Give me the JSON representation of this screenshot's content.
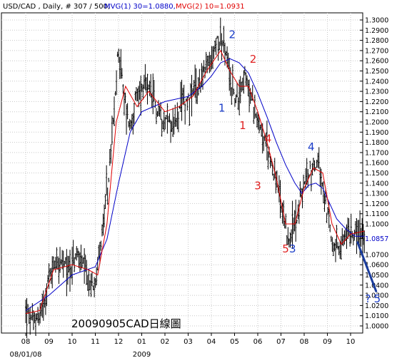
{
  "header": {
    "symbol": "USD/CAD , Daily, # 307 / 500,",
    "mvg1": "MVG(1) 30=1.0880,",
    "mvg2": "MVG(2) 10=1.0931"
  },
  "watermark": "20090905CAD日線圖",
  "colors": {
    "mvg1": "#0000c8",
    "mvg2": "#e00000",
    "bars": "#000000",
    "wave_blue": "#1a3cc8",
    "wave_red": "#e02020",
    "arrow": "#1a3c9c",
    "grid": "#c8c8c8"
  },
  "chart_data": {
    "type": "line",
    "title": "USD/CAD , Daily, # 307 / 500,",
    "ylim": [
      0.993,
      1.307
    ],
    "y_ticks": [
      "1.3000",
      "1.2900",
      "1.2800",
      "1.2700",
      "1.2600",
      "1.2500",
      "1.2400",
      "1.2300",
      "1.2200",
      "1.2100",
      "1.2000",
      "1.1900",
      "1.1800",
      "1.1700",
      "1.1600",
      "1.1500",
      "1.1400",
      "1.1300",
      "1.1200",
      "1.1100",
      "1.1000",
      "1.0857",
      "1.0700",
      "1.0600",
      "1.0500",
      "1.0400",
      "1.0300",
      "1.0200",
      "1.0100",
      "1.0000"
    ],
    "current_price": "1.0857",
    "x_ticks": [
      "08",
      "09",
      "10",
      "11",
      "12",
      "01",
      "02",
      "03",
      "04",
      "05",
      "06",
      "07",
      "08",
      "09",
      "10"
    ],
    "x_sublabels": [
      {
        "label": "08/01/08",
        "at": "08"
      },
      {
        "label": "2009",
        "at": "01"
      }
    ],
    "price_series": [
      {
        "t": 0,
        "v": 1.015
      },
      {
        "t": 0.3,
        "v": 1.003
      },
      {
        "t": 0.6,
        "v": 1.012
      },
      {
        "t": 1.0,
        "v": 1.045
      },
      {
        "t": 1.3,
        "v": 1.065
      },
      {
        "t": 1.7,
        "v": 1.058
      },
      {
        "t": 2.0,
        "v": 1.06
      },
      {
        "t": 2.3,
        "v": 1.07
      },
      {
        "t": 2.6,
        "v": 1.048
      },
      {
        "t": 2.8,
        "v": 1.035
      },
      {
        "t": 3.0,
        "v": 1.05
      },
      {
        "t": 3.3,
        "v": 1.09
      },
      {
        "t": 3.6,
        "v": 1.15
      },
      {
        "t": 3.85,
        "v": 1.22
      },
      {
        "t": 4.0,
        "v": 1.275
      },
      {
        "t": 4.2,
        "v": 1.23
      },
      {
        "t": 4.5,
        "v": 1.195
      },
      {
        "t": 4.8,
        "v": 1.225
      },
      {
        "t": 5.1,
        "v": 1.235
      },
      {
        "t": 5.4,
        "v": 1.225
      },
      {
        "t": 5.7,
        "v": 1.21
      },
      {
        "t": 6.0,
        "v": 1.205
      },
      {
        "t": 6.4,
        "v": 1.195
      },
      {
        "t": 6.8,
        "v": 1.22
      },
      {
        "t": 7.2,
        "v": 1.225
      },
      {
        "t": 7.6,
        "v": 1.245
      },
      {
        "t": 8.0,
        "v": 1.26
      },
      {
        "t": 8.3,
        "v": 1.285
      },
      {
        "t": 8.55,
        "v": 1.275
      },
      {
        "t": 8.8,
        "v": 1.24
      },
      {
        "t": 9.1,
        "v": 1.22
      },
      {
        "t": 9.4,
        "v": 1.245
      },
      {
        "t": 9.7,
        "v": 1.225
      },
      {
        "t": 10.0,
        "v": 1.205
      },
      {
        "t": 10.3,
        "v": 1.18
      },
      {
        "t": 10.6,
        "v": 1.16
      },
      {
        "t": 10.9,
        "v": 1.13
      },
      {
        "t": 11.2,
        "v": 1.09
      },
      {
        "t": 11.4,
        "v": 1.085
      },
      {
        "t": 11.7,
        "v": 1.11
      },
      {
        "t": 12.0,
        "v": 1.14
      },
      {
        "t": 12.3,
        "v": 1.155
      },
      {
        "t": 12.6,
        "v": 1.16
      },
      {
        "t": 12.9,
        "v": 1.12
      },
      {
        "t": 13.2,
        "v": 1.085
      },
      {
        "t": 13.5,
        "v": 1.072
      },
      {
        "t": 13.8,
        "v": 1.09
      },
      {
        "t": 14.1,
        "v": 1.095
      },
      {
        "t": 14.4,
        "v": 1.088
      },
      {
        "t": 14.6,
        "v": 1.0857
      }
    ],
    "series": [
      {
        "name": "MVG(1) 30",
        "color": "#0000c8",
        "values": [
          {
            "t": 0,
            "v": 1.015
          },
          {
            "t": 1.0,
            "v": 1.03
          },
          {
            "t": 2.0,
            "v": 1.05
          },
          {
            "t": 3.0,
            "v": 1.058
          },
          {
            "t": 3.5,
            "v": 1.085
          },
          {
            "t": 4.0,
            "v": 1.14
          },
          {
            "t": 4.5,
            "v": 1.19
          },
          {
            "t": 5.0,
            "v": 1.21
          },
          {
            "t": 6.0,
            "v": 1.22
          },
          {
            "t": 7.0,
            "v": 1.225
          },
          {
            "t": 7.6,
            "v": 1.235
          },
          {
            "t": 8.0,
            "v": 1.245
          },
          {
            "t": 8.4,
            "v": 1.258
          },
          {
            "t": 8.8,
            "v": 1.262
          },
          {
            "t": 9.2,
            "v": 1.258
          },
          {
            "t": 9.6,
            "v": 1.248
          },
          {
            "t": 10.0,
            "v": 1.228
          },
          {
            "t": 10.4,
            "v": 1.205
          },
          {
            "t": 10.8,
            "v": 1.18
          },
          {
            "t": 11.2,
            "v": 1.158
          },
          {
            "t": 11.6,
            "v": 1.14
          },
          {
            "t": 11.9,
            "v": 1.13
          },
          {
            "t": 12.2,
            "v": 1.138
          },
          {
            "t": 12.5,
            "v": 1.14
          },
          {
            "t": 12.8,
            "v": 1.135
          },
          {
            "t": 13.1,
            "v": 1.12
          },
          {
            "t": 13.4,
            "v": 1.105
          },
          {
            "t": 13.8,
            "v": 1.095
          },
          {
            "t": 14.2,
            "v": 1.088
          },
          {
            "t": 14.6,
            "v": 1.088
          }
        ]
      },
      {
        "name": "MVG(2) 10",
        "color": "#e00000",
        "values": [
          {
            "t": 0,
            "v": 1.012
          },
          {
            "t": 0.6,
            "v": 1.015
          },
          {
            "t": 1.2,
            "v": 1.055
          },
          {
            "t": 2.0,
            "v": 1.06
          },
          {
            "t": 2.7,
            "v": 1.055
          },
          {
            "t": 3.1,
            "v": 1.05
          },
          {
            "t": 3.5,
            "v": 1.1
          },
          {
            "t": 3.9,
            "v": 1.2
          },
          {
            "t": 4.3,
            "v": 1.235
          },
          {
            "t": 4.8,
            "v": 1.215
          },
          {
            "t": 5.3,
            "v": 1.23
          },
          {
            "t": 6.0,
            "v": 1.21
          },
          {
            "t": 6.6,
            "v": 1.215
          },
          {
            "t": 7.2,
            "v": 1.225
          },
          {
            "t": 7.8,
            "v": 1.25
          },
          {
            "t": 8.4,
            "v": 1.27
          },
          {
            "t": 8.8,
            "v": 1.25
          },
          {
            "t": 9.2,
            "v": 1.235
          },
          {
            "t": 9.6,
            "v": 1.235
          },
          {
            "t": 10.0,
            "v": 1.21
          },
          {
            "t": 10.4,
            "v": 1.18
          },
          {
            "t": 10.8,
            "v": 1.145
          },
          {
            "t": 11.2,
            "v": 1.1
          },
          {
            "t": 11.6,
            "v": 1.1
          },
          {
            "t": 12.0,
            "v": 1.135
          },
          {
            "t": 12.4,
            "v": 1.155
          },
          {
            "t": 12.8,
            "v": 1.15
          },
          {
            "t": 13.2,
            "v": 1.1
          },
          {
            "t": 13.6,
            "v": 1.08
          },
          {
            "t": 14.0,
            "v": 1.09
          },
          {
            "t": 14.6,
            "v": 1.093
          }
        ]
      }
    ],
    "annotations": [
      {
        "text": "2",
        "color": "#1a3cc8",
        "t": 8.9,
        "v": 1.282
      },
      {
        "text": "1",
        "color": "#1a3cc8",
        "t": 8.45,
        "v": 1.21
      },
      {
        "text": "2",
        "color": "#e02020",
        "t": 9.8,
        "v": 1.258
      },
      {
        "text": "1",
        "color": "#e02020",
        "t": 9.35,
        "v": 1.193
      },
      {
        "text": "4",
        "color": "#e02020",
        "t": 10.45,
        "v": 1.18
      },
      {
        "text": "3",
        "color": "#e02020",
        "t": 10.0,
        "v": 1.134
      },
      {
        "text": "4",
        "color": "#1a3cc8",
        "t": 12.3,
        "v": 1.172
      },
      {
        "text": "5",
        "color": "#e02020",
        "t": 11.2,
        "v": 1.072
      },
      {
        "text": "3",
        "color": "#1a3cc8",
        "t": 11.5,
        "v": 1.072
      },
      {
        "text": "?",
        "color": "#1a3cc8",
        "t": 14.75,
        "v": 1.023
      },
      {
        "text": "5",
        "color": "#1a3cc8",
        "t": 15.15,
        "v": 1.023
      }
    ],
    "projection": {
      "from": {
        "t": 14.3,
        "v": 1.082
      },
      "to": {
        "t": 15.1,
        "v": 1.034
      }
    }
  }
}
